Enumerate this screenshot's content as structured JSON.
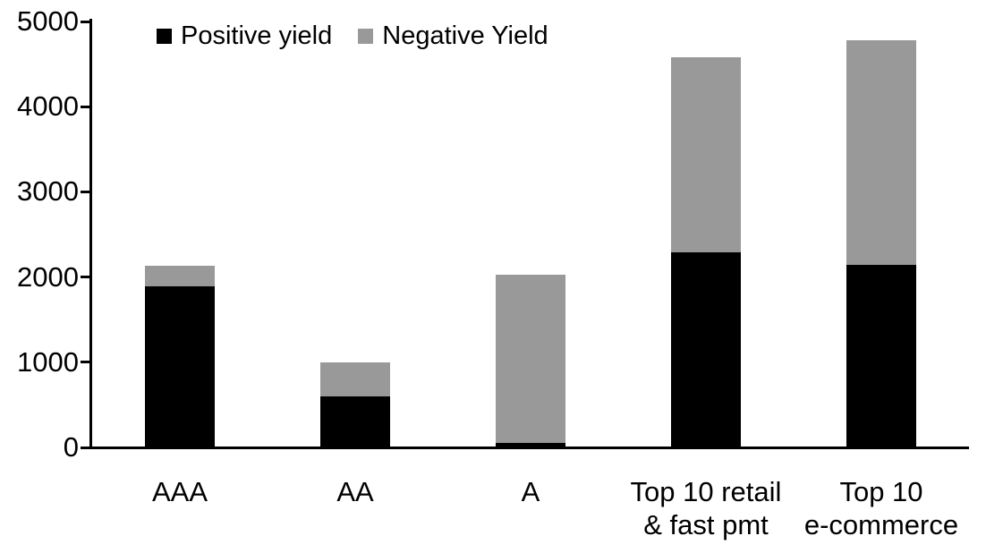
{
  "chart_data": {
    "type": "bar",
    "stacked": true,
    "title": "",
    "xlabel": "",
    "ylabel": "",
    "categories": [
      "AAA",
      "AA",
      "A",
      "Top 10 retail\n& fast pmt",
      "Top 10\ne-commerce"
    ],
    "series": [
      {
        "name": "Positive yield",
        "color": "#000000",
        "values": [
          1890,
          600,
          50,
          2290,
          2140
        ]
      },
      {
        "name": "Negative Yield",
        "color": "#999999",
        "values": [
          240,
          400,
          1980,
          2290,
          2640
        ]
      }
    ],
    "totals": [
      2130,
      1000,
      2030,
      4580,
      4780
    ],
    "ylim": [
      0,
      5000
    ],
    "yticks": [
      0,
      1000,
      2000,
      3000,
      4000,
      5000
    ],
    "grid": false,
    "legend_position": "top",
    "axis_color": "#000000",
    "background_color": "#ffffff"
  }
}
